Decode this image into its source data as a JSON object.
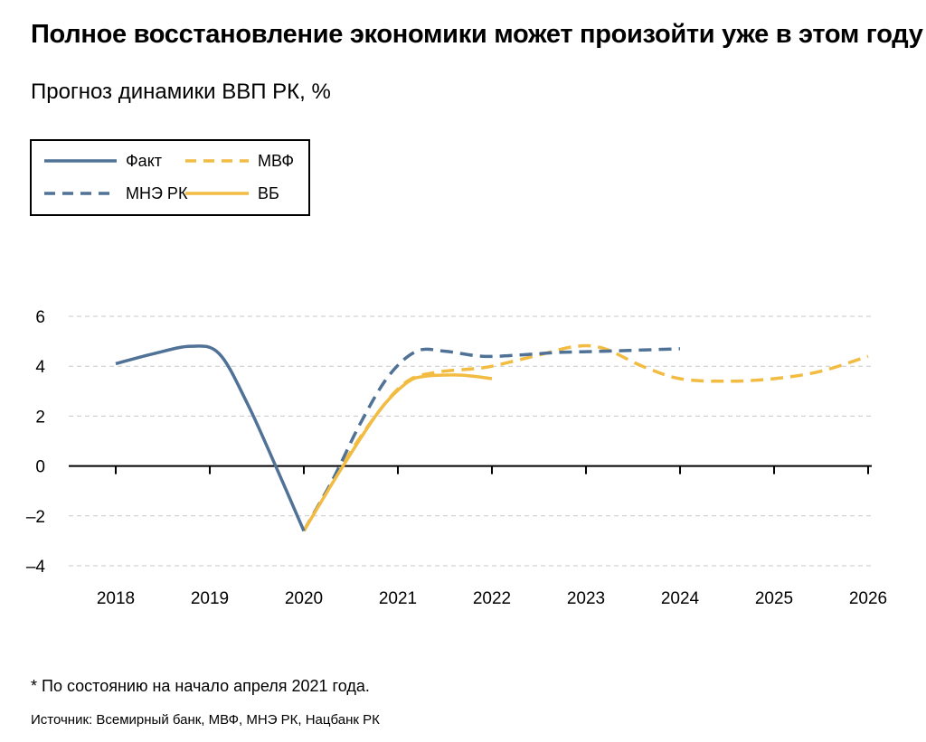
{
  "title": "Полное восстановление экономики может произойти уже в этом году",
  "subtitle": "Прогноз динамики ВВП РК, %",
  "footnote": "* По состоянию на начало апреля 2021 года.",
  "source": "Источник: Всемирный банк, МВФ, МНЭ РК, Нацбанк РК",
  "colors": {
    "blue": "#4f7296",
    "yellow": "#f2bc42",
    "grid": "#c8c8c8",
    "axis": "#000000"
  },
  "chart_data": {
    "type": "line",
    "xlabel": "",
    "ylabel": "",
    "ylim": [
      -4,
      6
    ],
    "xlim": [
      2018,
      2026
    ],
    "yticks": [
      -4,
      -2,
      0,
      2,
      4,
      6
    ],
    "ytick_labels": [
      "–4",
      "–2",
      "0",
      "2",
      "4",
      "6"
    ],
    "xticks": [
      2018,
      2019,
      2020,
      2021,
      2022,
      2023,
      2024,
      2025,
      2026
    ],
    "grid": true,
    "legend": "top-left",
    "series": [
      {
        "name": "Факт",
        "color": "#4f7296",
        "dash": false,
        "points": [
          [
            2018,
            4.1
          ],
          [
            2018.4,
            4.5
          ],
          [
            2018.8,
            4.8
          ],
          [
            2019.1,
            4.5
          ],
          [
            2019.4,
            2.5
          ],
          [
            2019.7,
            0.0
          ],
          [
            2020.0,
            -2.6
          ]
        ]
      },
      {
        "name": "МНЭ РК",
        "color": "#4f7296",
        "dash": true,
        "points": [
          [
            2020.0,
            -2.6
          ],
          [
            2020.3,
            -0.6
          ],
          [
            2020.6,
            1.7
          ],
          [
            2020.9,
            3.6
          ],
          [
            2021.2,
            4.6
          ],
          [
            2021.5,
            4.6
          ],
          [
            2021.9,
            4.4
          ],
          [
            2022.3,
            4.45
          ],
          [
            2022.7,
            4.55
          ],
          [
            2023.2,
            4.6
          ],
          [
            2023.6,
            4.65
          ],
          [
            2024.0,
            4.7
          ]
        ]
      },
      {
        "name": "МВФ",
        "color": "#f2bc42",
        "dash": true,
        "points": [
          [
            2020.0,
            -2.6
          ],
          [
            2020.4,
            0.0
          ],
          [
            2020.8,
            2.2
          ],
          [
            2021.1,
            3.4
          ],
          [
            2021.4,
            3.75
          ],
          [
            2021.8,
            3.9
          ],
          [
            2022.0,
            4.0
          ],
          [
            2022.5,
            4.45
          ],
          [
            2022.9,
            4.8
          ],
          [
            2023.2,
            4.7
          ],
          [
            2023.6,
            4.0
          ],
          [
            2024.0,
            3.5
          ],
          [
            2024.5,
            3.4
          ],
          [
            2025.0,
            3.5
          ],
          [
            2025.5,
            3.8
          ],
          [
            2026.0,
            4.4
          ]
        ]
      },
      {
        "name": "ВБ",
        "color": "#f2bc42",
        "dash": false,
        "points": [
          [
            2020.0,
            -2.6
          ],
          [
            2020.4,
            -0.1
          ],
          [
            2020.8,
            2.2
          ],
          [
            2021.1,
            3.35
          ],
          [
            2021.3,
            3.6
          ],
          [
            2021.6,
            3.65
          ],
          [
            2021.8,
            3.6
          ],
          [
            2022.0,
            3.5
          ]
        ]
      }
    ]
  }
}
